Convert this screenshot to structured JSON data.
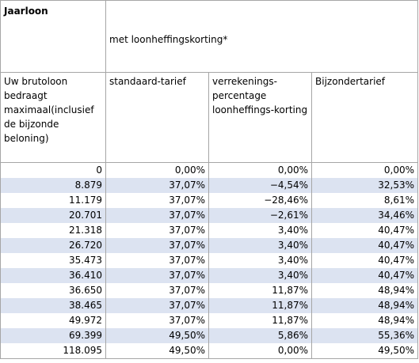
{
  "table": {
    "title": "Jaarloon",
    "group_header": "met loonheffingskorting*",
    "columns": [
      "Uw brutoloon bedraagt maximaal(inclusief de bijzonde beloning)",
      "standaard-tarief",
      "verrekenings-percentage loonheffings-korting",
      "Bijzondertarief"
    ],
    "rows": [
      [
        "0",
        "0,00%",
        "0,00%",
        "0,00%"
      ],
      [
        "8.879",
        "37,07%",
        "−4,54%",
        "32,53%"
      ],
      [
        "11.179",
        "37,07%",
        "−28,46%",
        "8,61%"
      ],
      [
        "20.701",
        "37,07%",
        "−2,61%",
        "34,46%"
      ],
      [
        "21.318",
        "37,07%",
        "3,40%",
        "40,47%"
      ],
      [
        "26.720",
        "37,07%",
        "3,40%",
        "40,47%"
      ],
      [
        "35.473",
        "37,07%",
        "3,40%",
        "40,47%"
      ],
      [
        "36.410",
        "37,07%",
        "3,40%",
        "40,47%"
      ],
      [
        "36.650",
        "37,07%",
        "11,87%",
        "48,94%"
      ],
      [
        "38.465",
        "37,07%",
        "11,87%",
        "48,94%"
      ],
      [
        "49.972",
        "37,07%",
        "11,87%",
        "48,94%"
      ],
      [
        "69.399",
        "49,50%",
        "5,86%",
        "55,36%"
      ],
      [
        "118.095",
        "49,50%",
        "0,00%",
        "49,50%"
      ]
    ]
  }
}
